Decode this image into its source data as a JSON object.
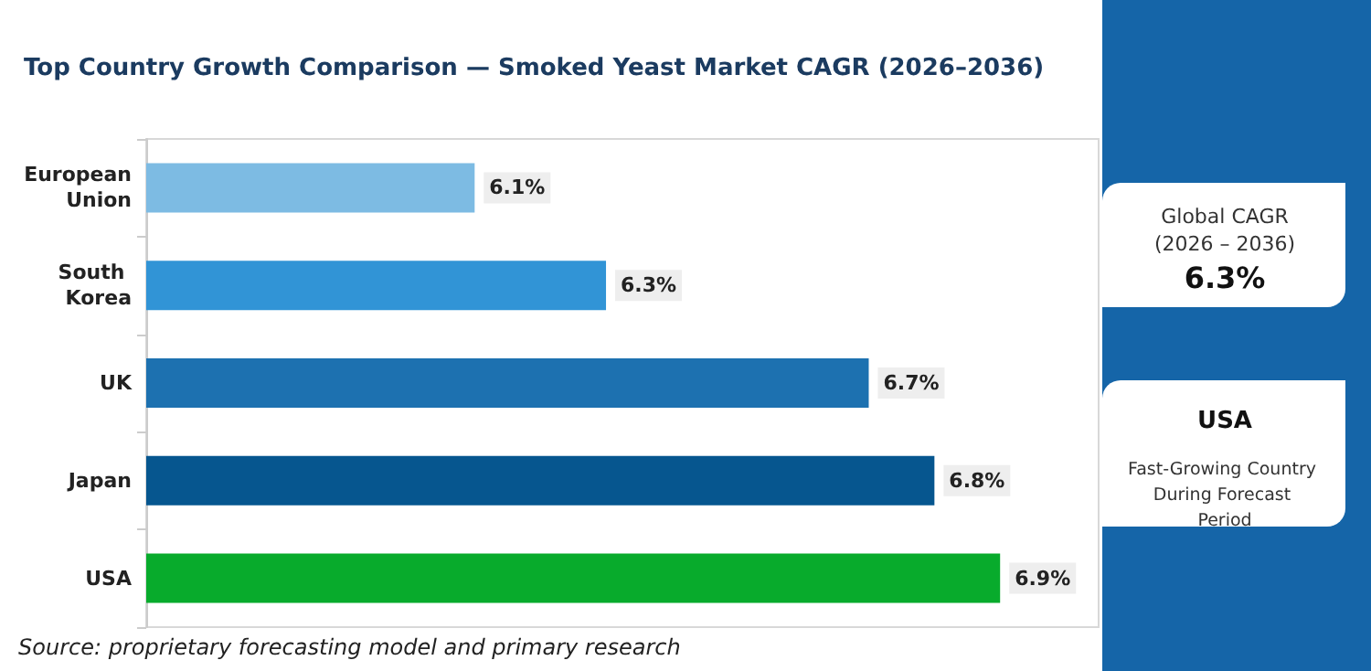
{
  "chart_data": {
    "type": "bar",
    "orientation": "horizontal",
    "title": "Top Country Growth Comparison — Smoked Yeast Market CAGR (2026–2036)",
    "categories": [
      "European Union",
      "South Korea",
      "UK",
      "Japan",
      "USA"
    ],
    "values": [
      6.1,
      6.3,
      6.7,
      6.8,
      6.9
    ],
    "colors": [
      "#7dbbe3",
      "#3194d6",
      "#1d71b0",
      "#06568f",
      "#08ab2c"
    ],
    "value_labels": [
      "6.1%",
      "6.3%",
      "6.7%",
      "6.8%",
      "6.9%"
    ],
    "xlim": [
      5.6,
      7.05
    ],
    "tick_labels": "y",
    "grid": false,
    "annotations": [
      "Source: proprietary forecasting model and primary research",
      "Global CAGR",
      "(2026 – 2036)",
      "6.3%",
      "USA",
      "Fast-Growing Country During Forecast Period"
    ]
  }
}
